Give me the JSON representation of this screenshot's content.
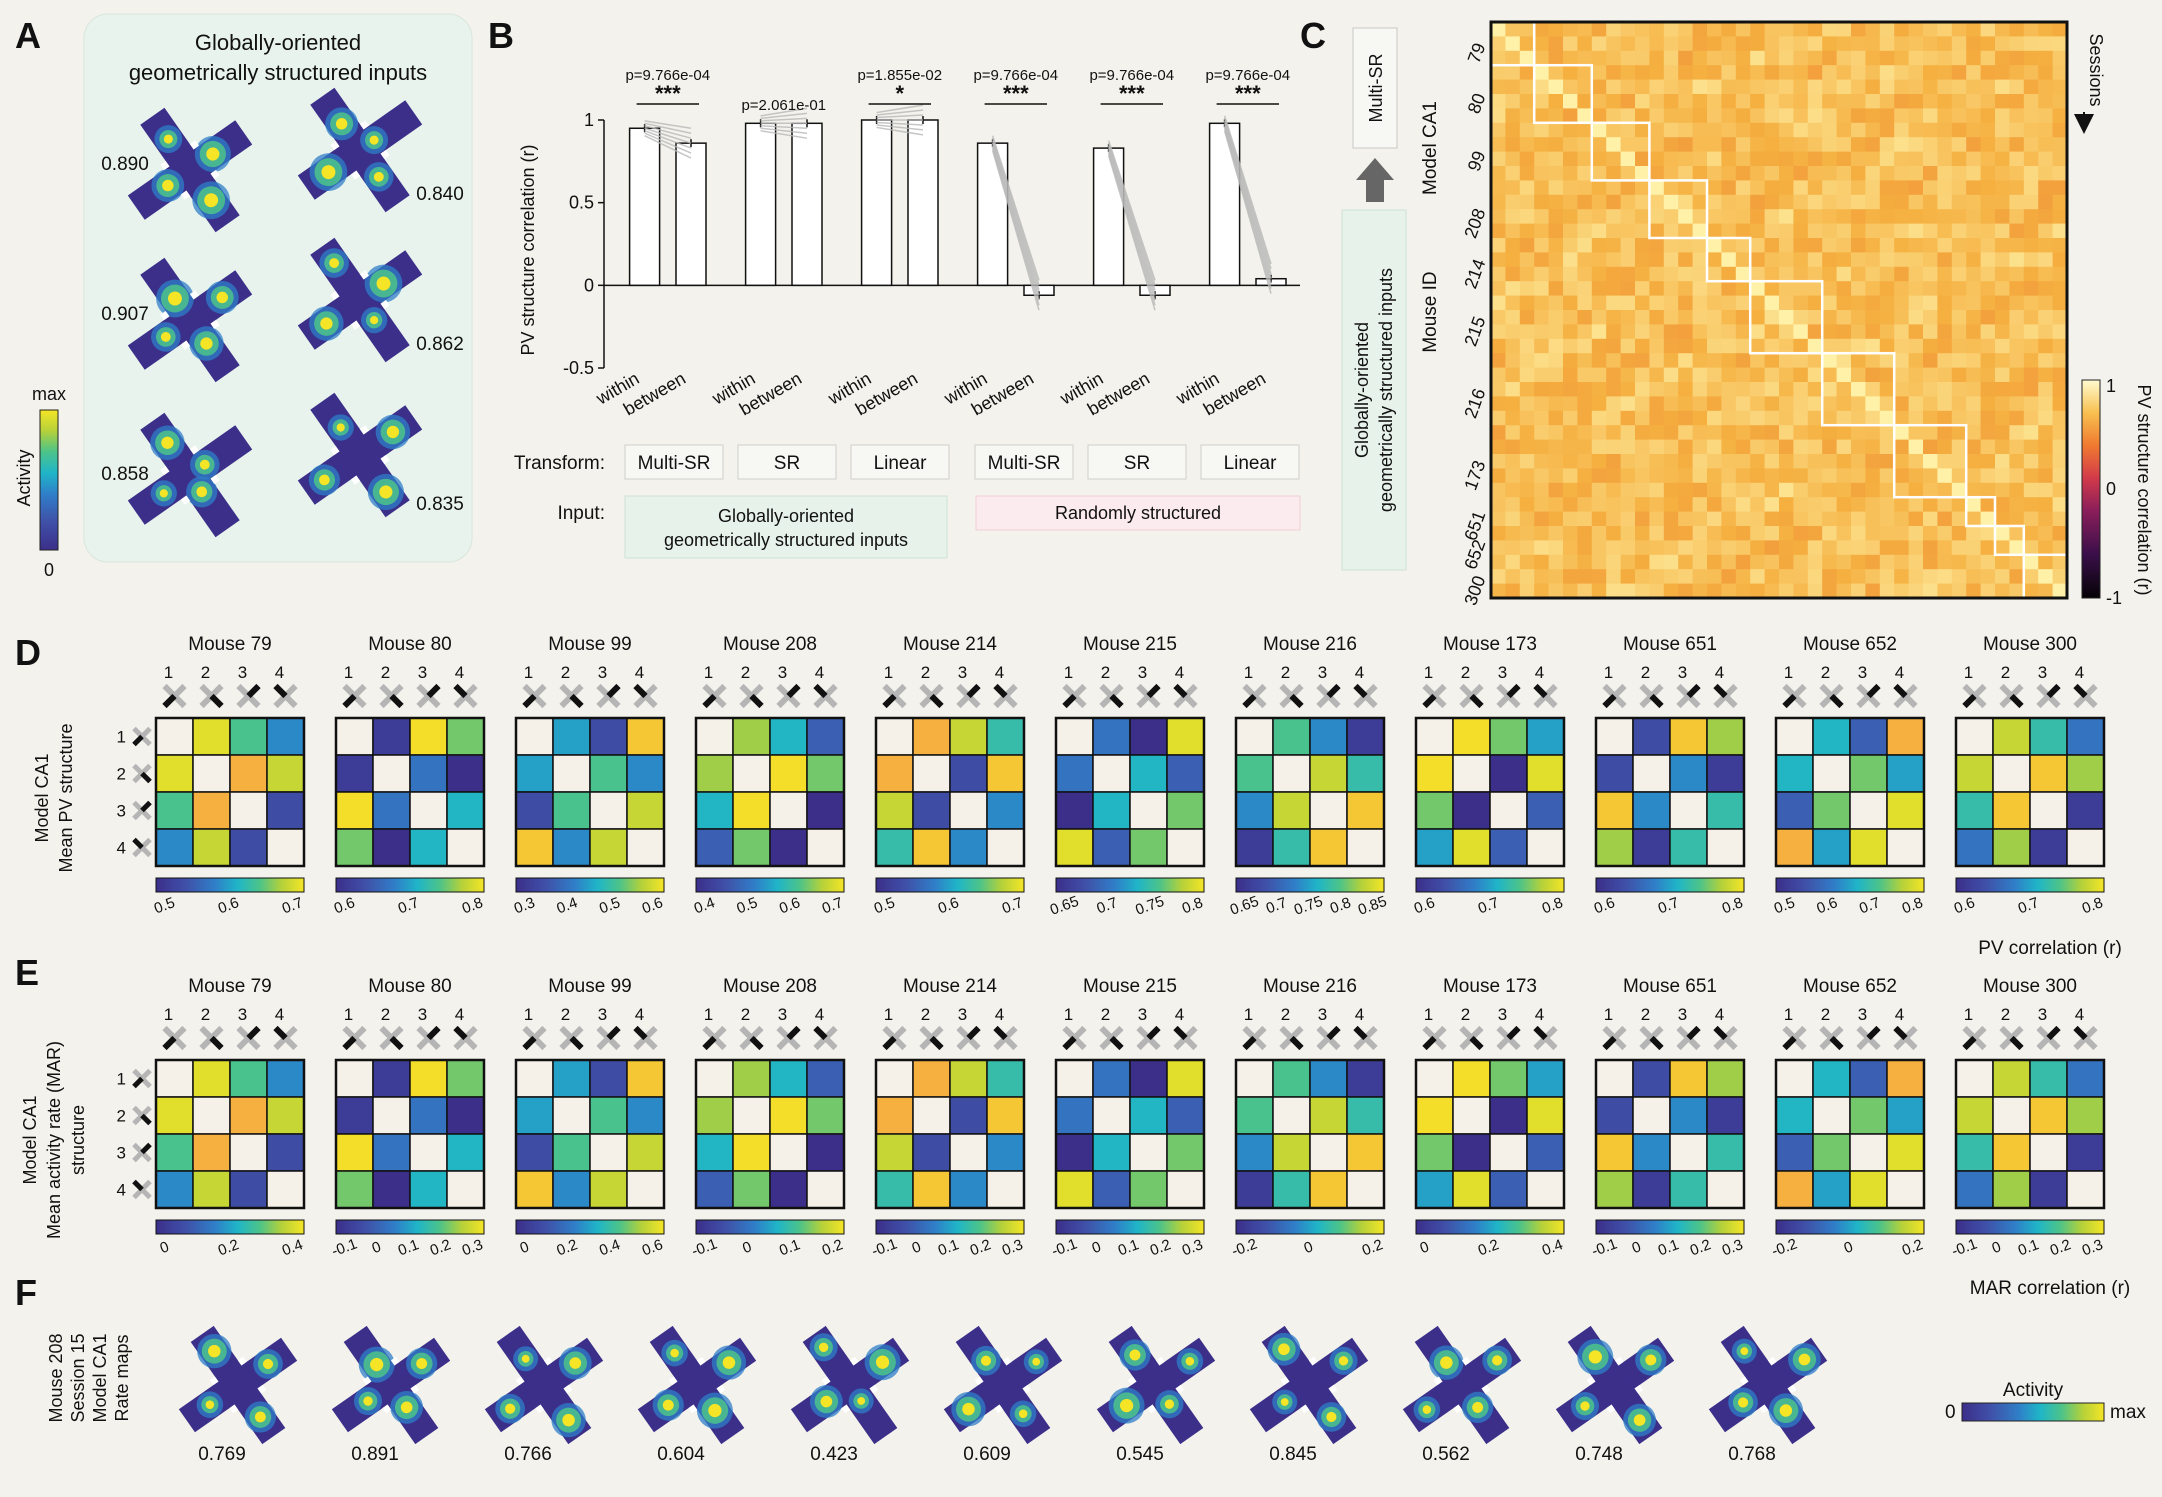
{
  "panels": {
    "A": "A",
    "B": "B",
    "C": "C",
    "D": "D",
    "E": "E",
    "F": "F"
  },
  "panelA": {
    "title_line1": "Globally-oriented",
    "title_line2": "geometrically structured inputs",
    "colorbar_label": "Activity",
    "colorbar_max": "max",
    "colorbar_min": "0",
    "maps": [
      {
        "value": "0.890"
      },
      {
        "value": "0.840"
      },
      {
        "value": "0.907"
      },
      {
        "value": "0.862"
      },
      {
        "value": "0.858"
      },
      {
        "value": "0.835"
      }
    ]
  },
  "chart_data": {
    "type": "bar",
    "title": "",
    "ylabel": "PV structure correlation (r)",
    "ylim": [
      -0.5,
      1
    ],
    "yticks": [
      "1",
      "0.5",
      "0",
      "-0.5"
    ],
    "categories": [
      "within",
      "between",
      "within",
      "between",
      "within",
      "between",
      "within",
      "between",
      "within",
      "between",
      "within",
      "between"
    ],
    "values": [
      0.95,
      0.86,
      0.98,
      0.98,
      1.0,
      1.0,
      0.86,
      -0.06,
      0.83,
      -0.06,
      0.98,
      0.04
    ],
    "groups": [
      {
        "transform": "Multi-SR",
        "p": "p=9.766e-04",
        "sig": "***"
      },
      {
        "transform": "SR",
        "p": "p=2.061e-01",
        "sig": ""
      },
      {
        "transform": "Linear",
        "p": "p=1.855e-02",
        "sig": "*"
      },
      {
        "transform": "Multi-SR",
        "p": "p=9.766e-04",
        "sig": "***"
      },
      {
        "transform": "SR",
        "p": "p=9.766e-04",
        "sig": "***"
      },
      {
        "transform": "Linear",
        "p": "p=9.766e-04",
        "sig": "***"
      }
    ],
    "transform_label": "Transform:",
    "input_label": "Input:",
    "input_global_line1": "Globally-oriented",
    "input_global_line2": "geometrically structured inputs",
    "input_random": "Randomly structured"
  },
  "panelC": {
    "flow_top": "Multi-SR",
    "flow_bottom_line1": "Globally-oriented",
    "flow_bottom_line2": "geometrically structured inputs",
    "ylabel_model": "Model CA1",
    "ylabel_mouse": "Mouse ID",
    "sessions_label": "Sessions",
    "mouse_ids": [
      "79",
      "80",
      "99",
      "208",
      "214",
      "215",
      "216",
      "173",
      "651",
      "652",
      "300"
    ],
    "colorbar_label": "PV structure correlation (r)",
    "colorbar_ticks": [
      "1",
      "0",
      "-1"
    ]
  },
  "panelD": {
    "ylabel_line1": "Model CA1",
    "ylabel_line2": "Mean PV structure",
    "xlabel": "PV correlation (r)",
    "env_labels": [
      "1",
      "2",
      "3",
      "4"
    ],
    "mice": [
      {
        "name": "Mouse 79",
        "ticks": [
          "0.5",
          "0.6",
          "0.7"
        ]
      },
      {
        "name": "Mouse 80",
        "ticks": [
          "0.6",
          "0.7",
          "0.8"
        ]
      },
      {
        "name": "Mouse 99",
        "ticks": [
          "0.3",
          "0.4",
          "0.5",
          "0.6"
        ]
      },
      {
        "name": "Mouse 208",
        "ticks": [
          "0.4",
          "0.5",
          "0.6",
          "0.7"
        ]
      },
      {
        "name": "Mouse 214",
        "ticks": [
          "0.5",
          "0.6",
          "0.7"
        ]
      },
      {
        "name": "Mouse 215",
        "ticks": [
          "0.65",
          "0.7",
          "0.75",
          "0.8"
        ]
      },
      {
        "name": "Mouse 216",
        "ticks": [
          "0.65",
          "0.7",
          "0.75",
          "0.8",
          "0.85"
        ]
      },
      {
        "name": "Mouse 173",
        "ticks": [
          "0.6",
          "0.7",
          "0.8"
        ]
      },
      {
        "name": "Mouse 651",
        "ticks": [
          "0.6",
          "0.7",
          "0.8"
        ]
      },
      {
        "name": "Mouse 652",
        "ticks": [
          "0.5",
          "0.6",
          "0.7",
          "0.8"
        ]
      },
      {
        "name": "Mouse 300",
        "ticks": [
          "0.6",
          "0.7",
          "0.8"
        ]
      }
    ]
  },
  "panelE": {
    "ylabel_line1": "Model CA1",
    "ylabel_line2": "Mean activity rate (MAR)",
    "ylabel_line3": "structure",
    "xlabel": "MAR correlation (r)",
    "env_labels": [
      "1",
      "2",
      "3",
      "4"
    ],
    "mice": [
      {
        "name": "Mouse 79",
        "ticks": [
          "0",
          "0.2",
          "0.4"
        ]
      },
      {
        "name": "Mouse 80",
        "ticks": [
          "-0.1",
          "0",
          "0.1",
          "0.2",
          "0.3"
        ]
      },
      {
        "name": "Mouse 99",
        "ticks": [
          "0",
          "0.2",
          "0.4",
          "0.6"
        ]
      },
      {
        "name": "Mouse 208",
        "ticks": [
          "-0.1",
          "0",
          "0.1",
          "0.2"
        ]
      },
      {
        "name": "Mouse 214",
        "ticks": [
          "-0.1",
          "0",
          "0.1",
          "0.2",
          "0.3"
        ]
      },
      {
        "name": "Mouse 215",
        "ticks": [
          "-0.1",
          "0",
          "0.1",
          "0.2",
          "0.3"
        ]
      },
      {
        "name": "Mouse 216",
        "ticks": [
          "-0.2",
          "0",
          "0.2"
        ]
      },
      {
        "name": "Mouse 173",
        "ticks": [
          "0",
          "0.2",
          "0.4"
        ]
      },
      {
        "name": "Mouse 651",
        "ticks": [
          "-0.1",
          "0",
          "0.1",
          "0.2",
          "0.3"
        ]
      },
      {
        "name": "Mouse 652",
        "ticks": [
          "-0.2",
          "0",
          "0.2"
        ]
      },
      {
        "name": "Mouse 300",
        "ticks": [
          "-0.1",
          "0",
          "0.1",
          "0.2",
          "0.3"
        ]
      }
    ]
  },
  "panelF": {
    "ylabel_line1": "Mouse 208",
    "ylabel_line2": "Session 15",
    "ylabel_line3": "Model CA1",
    "ylabel_line4": "Rate maps",
    "values": [
      "0.769",
      "0.891",
      "0.766",
      "0.604",
      "0.423",
      "0.609",
      "0.545",
      "0.845",
      "0.562",
      "0.748",
      "0.768"
    ],
    "colorbar_label": "Activity",
    "colorbar_min": "0",
    "colorbar_max": "max"
  },
  "colors": {
    "viridis": [
      "#3b2f8a",
      "#4050a8",
      "#2f7fc8",
      "#1fb5c8",
      "#4cc38a",
      "#b5d13a",
      "#f5e526"
    ],
    "hot": [
      "#1a0a10",
      "#6a1a50",
      "#c0305a",
      "#ea6a32",
      "#f5b040",
      "#fff2a8"
    ],
    "panel_bg": "#f3f2ec",
    "panelA_bg": "#e9f3ed",
    "input_global_bg": "#e7f2ea",
    "input_random_bg": "#fbeaee"
  }
}
